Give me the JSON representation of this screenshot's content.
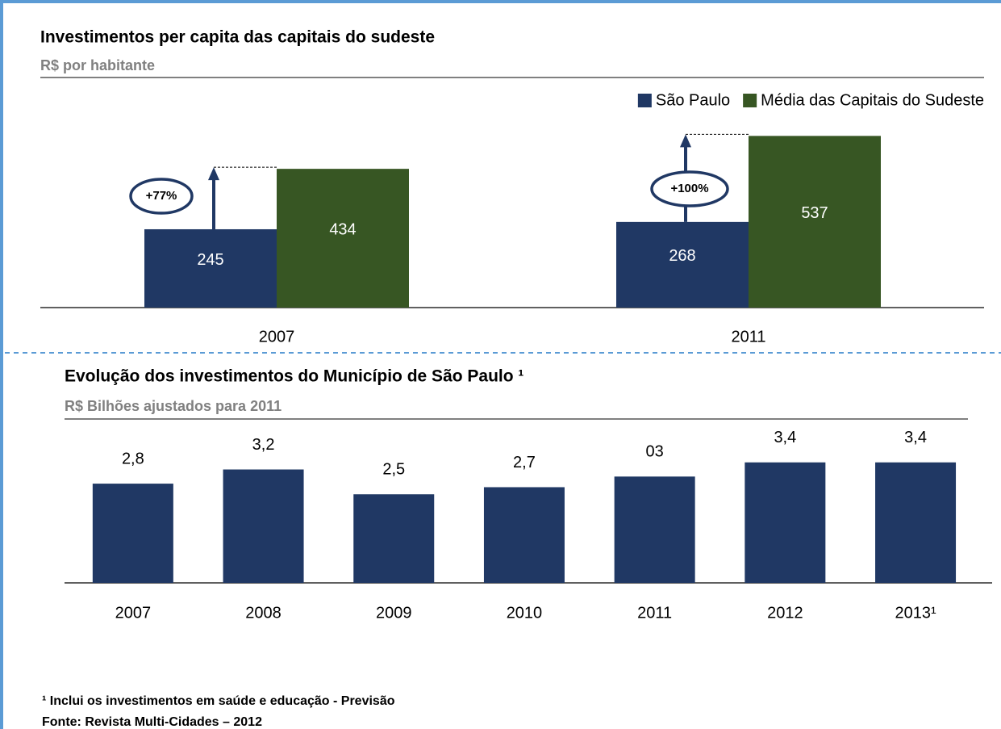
{
  "chart_data": [
    {
      "type": "bar",
      "title": "Investimentos per capita das capitais do sudeste",
      "subtitle": "R$ por habitante",
      "categories": [
        "2007",
        "2011"
      ],
      "series": [
        {
          "name": "São Paulo",
          "color": "#203864",
          "values": [
            245,
            268
          ]
        },
        {
          "name": "Média das Capitais do Sudeste",
          "color": "#375623",
          "values": [
            434,
            537
          ]
        }
      ],
      "annotations": [
        "+77%",
        "+100%"
      ],
      "legend": "top-right"
    },
    {
      "type": "bar",
      "title": "Evolução dos investimentos do Município de São Paulo ¹",
      "subtitle": "R$ Bilhões ajustados para 2011",
      "categories": [
        "2007",
        "2008",
        "2009",
        "2010",
        "2011",
        "2012",
        "2013¹"
      ],
      "values": [
        2.8,
        3.2,
        2.5,
        2.7,
        3,
        3.4,
        3.4
      ],
      "value_labels": [
        "2,8",
        "3,2",
        "2,5",
        "2,7",
        "03",
        "3,4",
        "3,4"
      ],
      "color": "#203864"
    }
  ],
  "footnotes": [
    "¹ Inclui os investimentos em saúde e educação - Previsão",
    "Fonte: Revista Multi-Cidades – 2012"
  ]
}
